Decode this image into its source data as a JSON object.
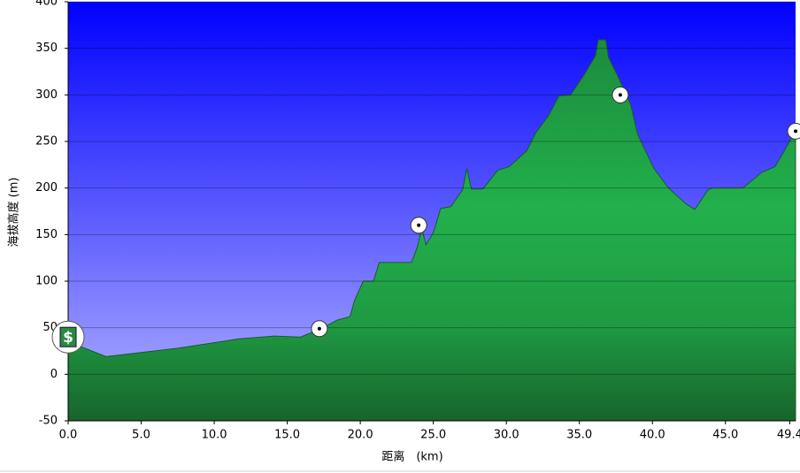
{
  "chart_data": {
    "type": "area",
    "xlabel": "距离　(km)",
    "ylabel": "海拔高度 (m)",
    "xlim": [
      0,
      49.8
    ],
    "ylim": [
      -50,
      400
    ],
    "xticks": [
      {
        "value": 0,
        "label": "0.0"
      },
      {
        "value": 5,
        "label": "5.0"
      },
      {
        "value": 10,
        "label": "10.0"
      },
      {
        "value": 15,
        "label": "15.0"
      },
      {
        "value": 20,
        "label": "20.0"
      },
      {
        "value": 25,
        "label": "25.0"
      },
      {
        "value": 30,
        "label": "30.0"
      },
      {
        "value": 35,
        "label": "35.0"
      },
      {
        "value": 40,
        "label": "40.0"
      },
      {
        "value": 45,
        "label": "45.0"
      },
      {
        "value": 49.4,
        "label": "49.4"
      }
    ],
    "yticks": [
      -50,
      0,
      50,
      100,
      150,
      200,
      250,
      300,
      350,
      400
    ],
    "grid": true,
    "color": "#22a84a",
    "x": [
      0,
      2.6,
      7.5,
      11.7,
      14.1,
      15.9,
      17.2,
      18.4,
      19.3,
      19.6,
      20.2,
      20.9,
      21.3,
      23.5,
      23.9,
      24.2,
      24.5,
      25.0,
      25.5,
      26.2,
      27.0,
      27.3,
      27.6,
      28.4,
      29.4,
      30.2,
      31.4,
      32.0,
      32.9,
      33.6,
      34.4,
      35.3,
      36.1,
      36.3,
      36.8,
      37.0,
      37.6,
      38.5,
      39.0,
      40.1,
      41.1,
      42.3,
      42.9,
      43.8,
      44.1,
      46.2,
      47.5,
      48.4,
      49.8
    ],
    "values": [
      35,
      19,
      28,
      38,
      41,
      40,
      48,
      58,
      62,
      79,
      100,
      100,
      120,
      120,
      136,
      157,
      139,
      152,
      178,
      180,
      198,
      221,
      199,
      199,
      219,
      223,
      240,
      259,
      278,
      299,
      300,
      321,
      342,
      359,
      359,
      340,
      321,
      290,
      257,
      221,
      200,
      183,
      177,
      198,
      200,
      200,
      217,
      223,
      261
    ],
    "markers": [
      {
        "x": 0,
        "y": 40,
        "label": "$"
      },
      {
        "x": 17.2,
        "y": 49
      },
      {
        "x": 24.0,
        "y": 160
      },
      {
        "x": 37.8,
        "y": 300
      },
      {
        "x": 49.8,
        "y": 261
      }
    ]
  }
}
